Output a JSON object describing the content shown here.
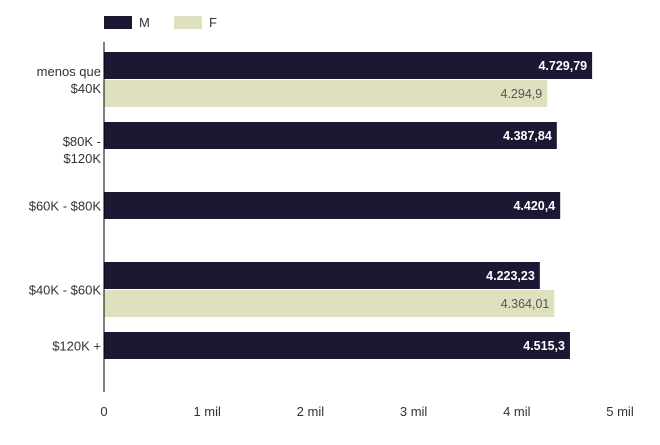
{
  "chart_data": {
    "type": "bar",
    "orientation": "horizontal",
    "categories": [
      [
        "menos que",
        "$40K"
      ],
      [
        "$80K -",
        "$120K"
      ],
      [
        "$60K - $80K"
      ],
      [
        "$40K - $60K"
      ],
      [
        "$120K +"
      ]
    ],
    "series": [
      {
        "name": "M",
        "color": "#1c1833",
        "values": [
          4729.79,
          4387.84,
          4420.4,
          4223.23,
          4515.3
        ],
        "labels": [
          "4.729,79",
          "4.387,84",
          "4.420,4",
          "4.223,23",
          "4.515,3"
        ]
      },
      {
        "name": "F",
        "color": "#dfe0bd",
        "values": [
          4294.9,
          null,
          null,
          4364.01,
          null
        ],
        "labels": [
          "4.294,9",
          null,
          null,
          "4.364,01",
          null
        ]
      }
    ],
    "xlim": [
      0,
      5000
    ],
    "xticks": [
      0,
      1000,
      2000,
      3000,
      4000,
      5000
    ],
    "xtick_labels": [
      "0",
      "1 mil",
      "2 mil",
      "3 mil",
      "4 mil",
      "5 mil"
    ],
    "legend_position": "top-left",
    "grid": false,
    "label_colors": {
      "on_dark": "#ffffff",
      "on_light": "#555555"
    }
  }
}
